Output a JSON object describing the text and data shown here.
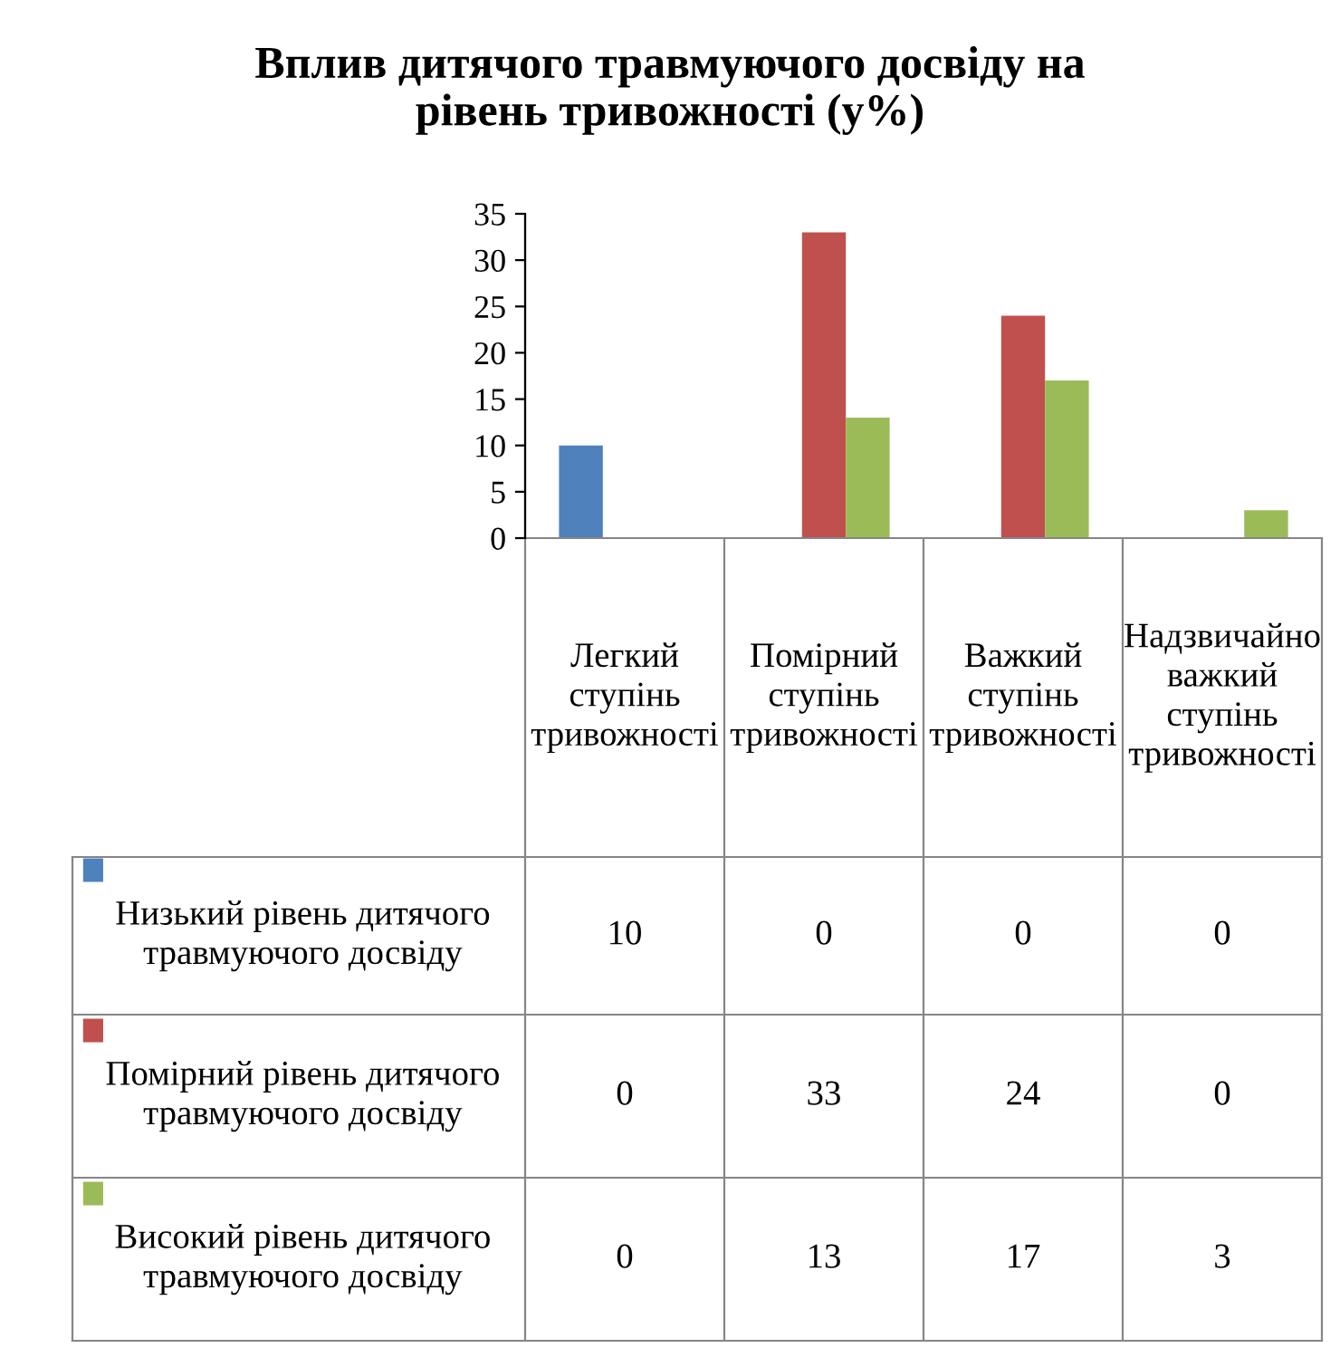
{
  "chart_data": {
    "type": "bar",
    "title": "Вплив дитячого травмуючого досвіду на рівень тривожності (у%)",
    "categories": [
      "Легкий ступінь тривожності",
      "Помірний ступінь тривожності",
      "Важкий ступінь тривожності",
      "Надзвичайно важкий ступінь тривожності"
    ],
    "series": [
      {
        "name": "Низький рівень дитячого травмуючого досвіду",
        "color": "#4f81bd",
        "values": [
          10,
          0,
          0,
          0
        ]
      },
      {
        "name": "Помірний рівень дитячого травмуючого досвіду",
        "color": "#c0504d",
        "values": [
          0,
          33,
          24,
          0
        ]
      },
      {
        "name": "Високий рівень дитячого травмуючого досвіду",
        "color": "#9bbb59",
        "values": [
          0,
          13,
          17,
          3
        ]
      }
    ],
    "ylim": [
      0,
      35
    ],
    "yticks": [
      0,
      5,
      10,
      15,
      20,
      25,
      30,
      35
    ],
    "grid": false,
    "legend": "left",
    "data_labels": true
  }
}
